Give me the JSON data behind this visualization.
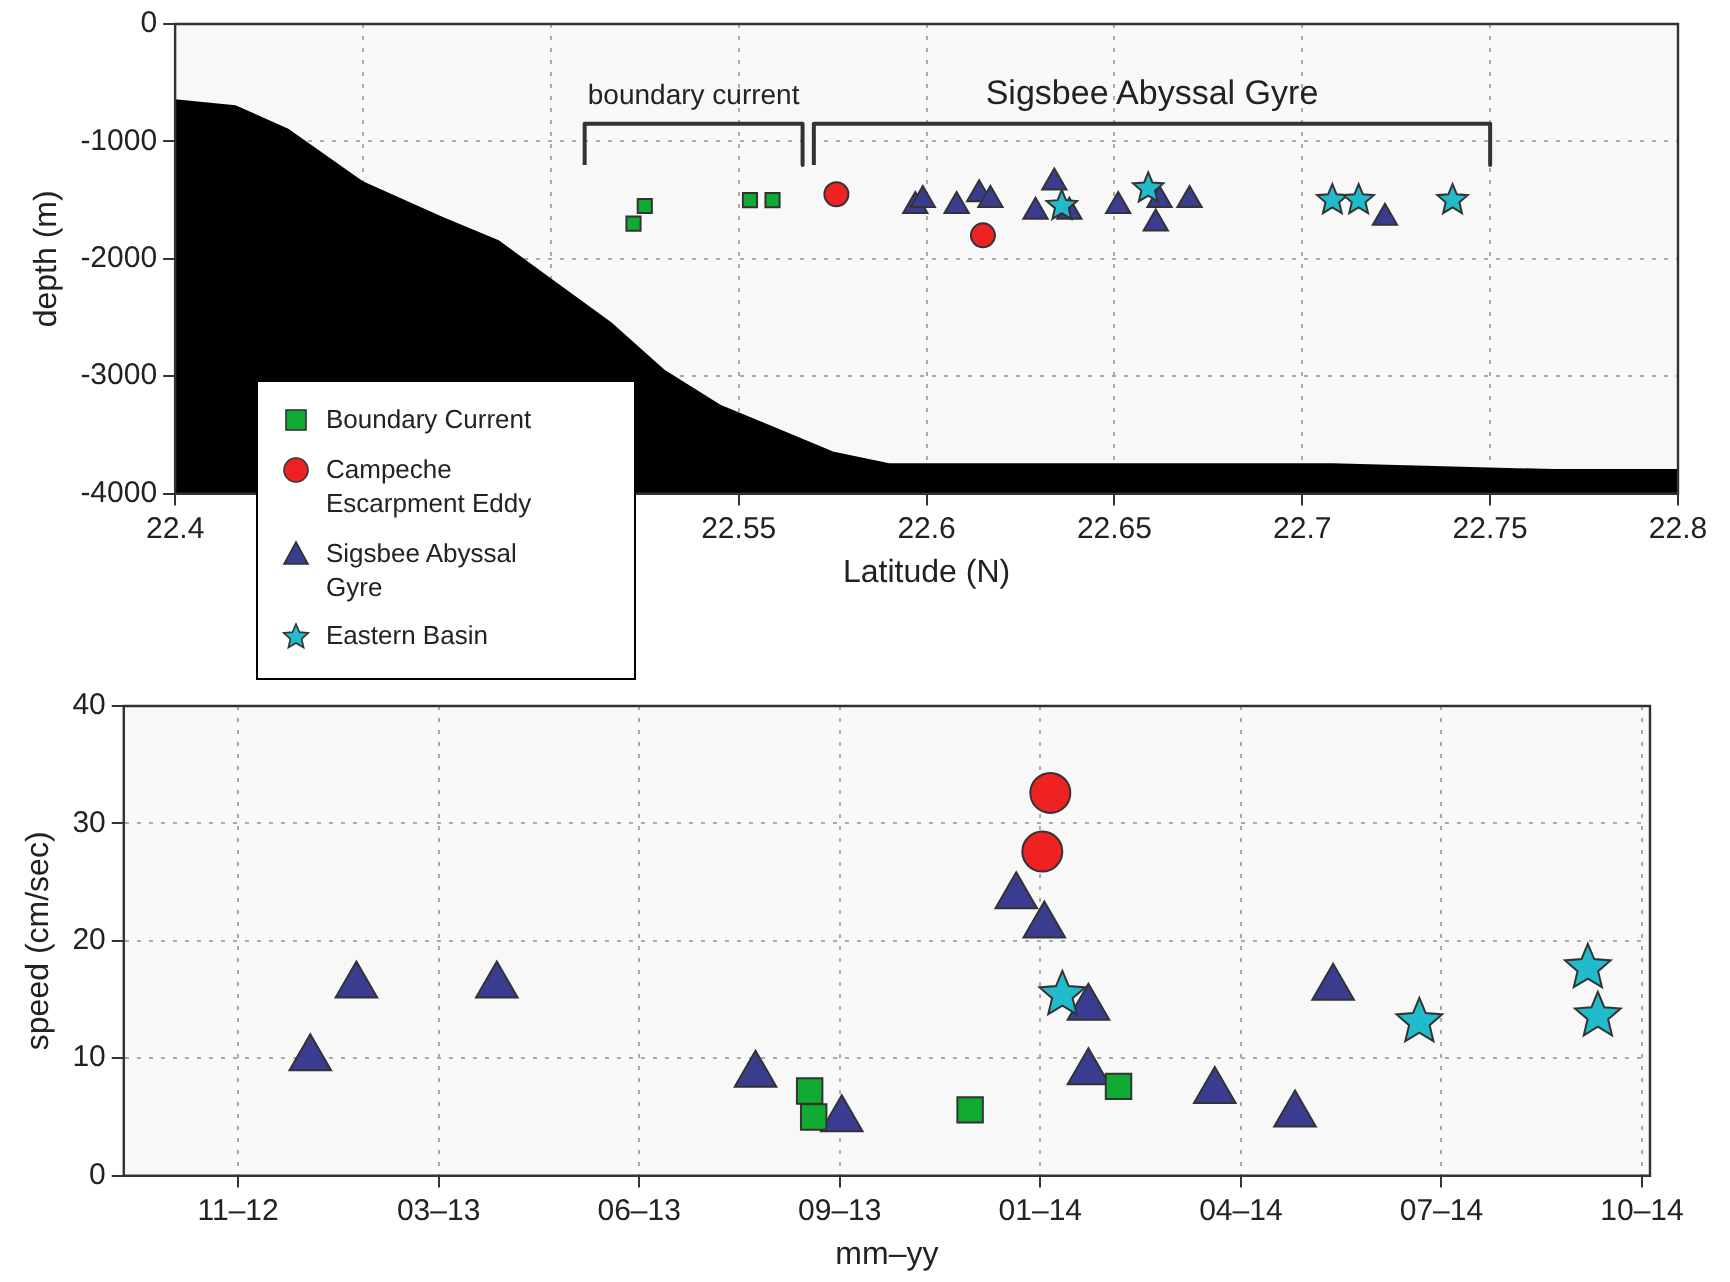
{
  "chart_data": [
    {
      "type": "scatter",
      "xlabel": "Latitude (N)",
      "ylabel": "depth (m)",
      "xlim": [
        22.4,
        22.8
      ],
      "xticks": [
        22.4,
        {
          "value": 22.45,
          "label": null
        },
        {
          "value": 22.5,
          "label": null
        },
        22.55,
        22.6,
        22.65,
        22.7,
        22.75,
        22.8
      ],
      "ylim": [
        -4000,
        0
      ],
      "yticks": [
        -4000,
        -3000,
        -2000,
        -1000,
        0
      ],
      "grid": true,
      "annotations": [
        "boundary current",
        "Sigsbee Abyssal Gyre"
      ],
      "series": [
        {
          "type": "area",
          "color": "#000000",
          "x": [
            22.4,
            22.4,
            22.416,
            22.43,
            22.45,
            22.471,
            22.486,
            22.501,
            22.516,
            22.53,
            22.545,
            22.56,
            22.575,
            22.59,
            22.616,
            22.708,
            22.767,
            22.8,
            22.8
          ],
          "values": [
            -4000,
            -650,
            -700,
            -900,
            -1350,
            -1650,
            -1850,
            -2200,
            -2550,
            -2950,
            -3250,
            -3450,
            -3650,
            -3750,
            -3750,
            -3750,
            -3800,
            -3800,
            -4000
          ]
        },
        {
          "type": "line",
          "color": "#333333",
          "x": [
            22.509,
            22.509,
            22.567,
            22.567
          ],
          "values": [
            -1200,
            -850,
            -850,
            -1200
          ]
        },
        {
          "type": "line",
          "color": "#333333",
          "x": [
            22.57,
            22.57,
            22.75,
            22.75
          ],
          "values": [
            -1200,
            -850,
            -850,
            -1200
          ]
        },
        {
          "color": "#11aa33",
          "marker": "square",
          "x": [
            22.522,
            22.525,
            22.553,
            22.559
          ],
          "values": [
            -1700,
            -1550,
            -1500,
            -1500
          ]
        },
        {
          "color": "#ee2222",
          "marker": "circle",
          "x": [
            22.576,
            22.615
          ],
          "values": [
            -1450,
            -1800
          ]
        },
        {
          "color": "#3a3d8f",
          "marker": "triangle",
          "x": [
            22.597,
            22.599,
            22.608,
            22.614,
            22.617,
            22.629,
            22.634,
            22.638,
            22.651,
            22.662,
            22.661,
            22.67,
            22.722
          ],
          "values": [
            -1550,
            -1500,
            -1550,
            -1450,
            -1500,
            -1600,
            -1350,
            -1600,
            -1550,
            -1500,
            -1700,
            -1500,
            -1650
          ]
        },
        {
          "color": "#22bbcc",
          "marker": "star",
          "x": [
            22.636,
            22.659,
            22.708,
            22.715,
            22.74
          ],
          "values": [
            -1550,
            -1400,
            -1500,
            -1500,
            -1500
          ]
        }
      ]
    },
    {
      "type": "scatter",
      "xlabel": "mm–yy",
      "ylabel": "speed (cm/sec)",
      "xlim": [
        "2012-10-02",
        "2014-11-02"
      ],
      "xticks": [
        {
          "value": "2012-11-28",
          "label": "11–12"
        },
        {
          "value": "2013-03-08",
          "label": "03–13"
        },
        {
          "value": "2013-06-16",
          "label": "06–13"
        },
        {
          "value": "2013-09-24",
          "label": "09–13"
        },
        {
          "value": "2014-01-02",
          "label": "01–14"
        },
        {
          "value": "2014-04-12",
          "label": "04–14"
        },
        {
          "value": "2014-07-21",
          "label": "07–14"
        },
        {
          "value": "2014-10-29",
          "label": "10–14"
        }
      ],
      "ylim": [
        0,
        40
      ],
      "yticks": [
        0,
        10,
        20,
        30,
        40
      ],
      "grid": true,
      "legend": "top left",
      "series": [
        {
          "name": "Boundary Current",
          "color": "#11aa33",
          "marker": "square",
          "x": [
            "2013-09-09",
            "2013-09-11",
            "2013-11-28",
            "2014-02-10"
          ],
          "values": [
            7.2,
            5,
            5.6,
            7.6
          ]
        },
        {
          "name": "Campeche Escarpment Eddy",
          "color": "#ee2222",
          "marker": "circle",
          "x": [
            "2014-01-07",
            "2014-01-03"
          ],
          "values": [
            32.6,
            27.6
          ]
        },
        {
          "name": "Sigsbee Abyssal Gyre",
          "color": "#3a3d8f",
          "marker": "triangle",
          "x": [
            "2013-01-03",
            "2013-01-26",
            "2013-04-06",
            "2013-08-13",
            "2013-09-25",
            "2013-12-21",
            "2014-01-04",
            "2014-01-26",
            "2014-01-26",
            "2014-03-30",
            "2014-05-09",
            "2014-05-28"
          ],
          "values": [
            10,
            16.2,
            16.2,
            8.6,
            4.8,
            23.8,
            21.3,
            14.3,
            8.8,
            7.2,
            5.2,
            16
          ]
        },
        {
          "name": "Eastern Basin",
          "color": "#22bbcc",
          "marker": "star",
          "x": [
            "2014-01-13",
            "2014-07-10",
            "2014-10-02",
            "2014-10-07"
          ],
          "values": [
            15.4,
            13.1,
            17.7,
            13.6
          ]
        }
      ]
    }
  ]
}
